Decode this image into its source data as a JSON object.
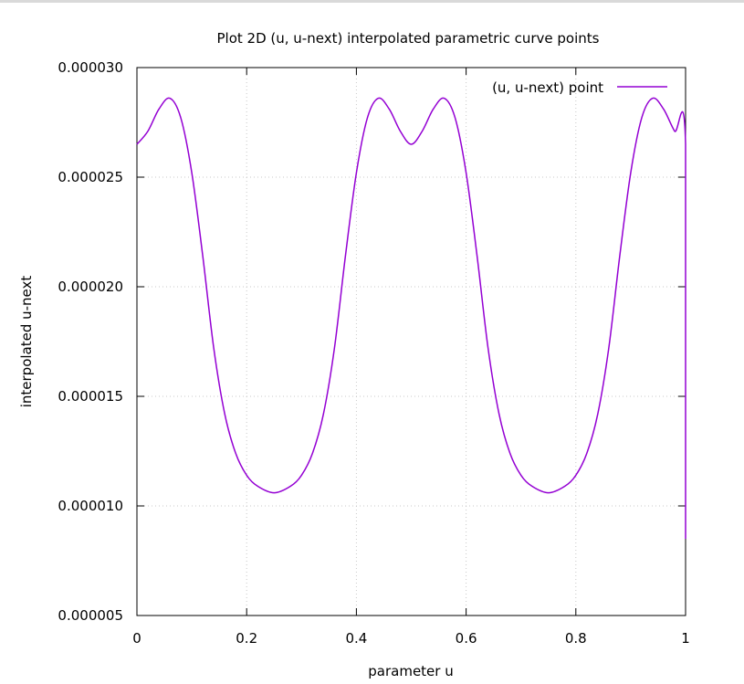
{
  "chart_data": {
    "type": "line",
    "title": "Plot 2D (u, u-next) interpolated parametric curve points",
    "xlabel": "parameter u",
    "ylabel": "interpolated u-next",
    "xlim": [
      0,
      1
    ],
    "ylim": [
      5e-06,
      3e-05
    ],
    "x_ticks": [
      "0",
      "0.2",
      "0.4",
      "0.6",
      "0.8",
      "1"
    ],
    "y_ticks": [
      "0.000005",
      "0.000010",
      "0.000015",
      "0.000020",
      "0.000025",
      "0.000030"
    ],
    "grid": true,
    "legend_position": "top-right",
    "series": [
      {
        "name": "(u, u-next) point",
        "color": "#9400d3",
        "x": [
          0,
          0.02,
          0.04,
          0.06,
          0.08,
          0.1,
          0.12,
          0.14,
          0.16,
          0.18,
          0.2,
          0.22,
          0.25,
          0.28,
          0.3,
          0.32,
          0.34,
          0.36,
          0.38,
          0.4,
          0.42,
          0.44,
          0.46,
          0.48,
          0.5,
          0.52,
          0.54,
          0.56,
          0.58,
          0.6,
          0.62,
          0.64,
          0.66,
          0.68,
          0.7,
          0.72,
          0.75,
          0.78,
          0.8,
          0.82,
          0.84,
          0.86,
          0.88,
          0.9,
          0.92,
          0.94,
          0.96,
          0.98,
          1.0,
          1.0
        ],
        "y": [
          2.65e-05,
          2.71e-05,
          2.81e-05,
          2.86e-05,
          2.77e-05,
          2.52e-05,
          2.14e-05,
          1.72e-05,
          1.42e-05,
          1.24e-05,
          1.14e-05,
          1.09e-05,
          1.06e-05,
          1.09e-05,
          1.14e-05,
          1.24e-05,
          1.42e-05,
          1.72e-05,
          2.14e-05,
          2.52e-05,
          2.77e-05,
          2.86e-05,
          2.81e-05,
          2.71e-05,
          2.65e-05,
          2.71e-05,
          2.81e-05,
          2.86e-05,
          2.77e-05,
          2.52e-05,
          2.14e-05,
          1.72e-05,
          1.42e-05,
          1.24e-05,
          1.14e-05,
          1.09e-05,
          1.06e-05,
          1.09e-05,
          1.14e-05,
          1.24e-05,
          1.42e-05,
          1.72e-05,
          2.14e-05,
          2.52e-05,
          2.77e-05,
          2.86e-05,
          2.81e-05,
          2.71e-05,
          2.65e-05,
          8.5e-06
        ]
      }
    ]
  }
}
